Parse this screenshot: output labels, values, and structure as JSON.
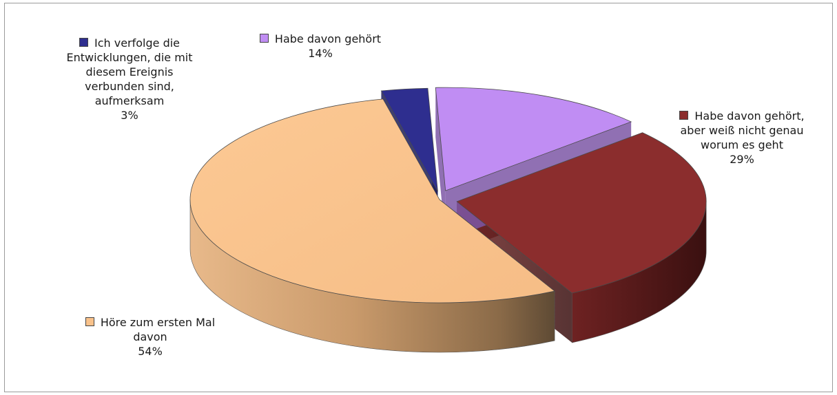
{
  "chart_data": {
    "type": "pie",
    "style": "3d-exploded",
    "legend": "labels next to slices",
    "slices": [
      {
        "label": "Habe davon gehört",
        "value": 14,
        "value_label": "14%",
        "color": "#C08DF3"
      },
      {
        "label": "Habe davon gehört, aber weiß nicht genau worum es geht",
        "value": 29,
        "value_label": "29%",
        "color": "#8B2D2D"
      },
      {
        "label": "Höre zum ersten Mal davon",
        "value": 54,
        "value_label": "54%",
        "color": "#F9C28B"
      },
      {
        "label": "Ich verfolge die Entwicklungen, die mit diesem Ereignis verbunden sind, aufmerksam",
        "value": 3,
        "value_label": "3%",
        "color": "#2E2E8F"
      }
    ]
  },
  "labels": {
    "purple": {
      "lines": [
        "Habe davon gehört"
      ],
      "pct": "14%"
    },
    "red": {
      "lines": [
        "Habe davon gehört,",
        "aber weiß nicht genau",
        "worum es geht"
      ],
      "pct": "29%"
    },
    "peach": {
      "lines": [
        "Höre zum ersten Mal",
        "davon"
      ],
      "pct": "54%"
    },
    "blue": {
      "lines": [
        "Ich verfolge die",
        "Entwicklungen, die mit",
        "diesem Ereignis",
        "verbunden sind,",
        "aufmerksam"
      ],
      "pct": "3%"
    }
  }
}
